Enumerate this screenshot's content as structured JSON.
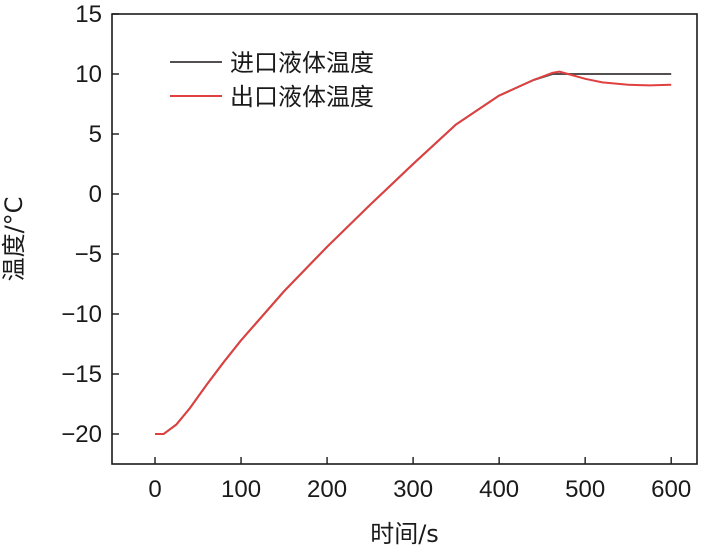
{
  "chart_data": {
    "type": "line",
    "xlabel": "时间/s",
    "ylabel": "温度/°C",
    "xlim": [
      -50,
      630
    ],
    "ylim": [
      -22.5,
      15
    ],
    "xticks": [
      0,
      100,
      200,
      300,
      400,
      500,
      600
    ],
    "yticks": [
      15,
      10,
      5,
      0,
      -5,
      -10,
      -15,
      -20
    ],
    "ytick_labels": [
      "15",
      "10",
      "5",
      "0",
      "−5",
      "−10",
      "−15",
      "−20"
    ],
    "grid": false,
    "legend_position": "top-left",
    "series": [
      {
        "name": "进口液体温度",
        "color": "#555050",
        "points": [
          [
            0,
            -20
          ],
          [
            10,
            -20
          ],
          [
            25,
            -19.2
          ],
          [
            40,
            -17.9
          ],
          [
            60,
            -15.9
          ],
          [
            80,
            -14.0
          ],
          [
            100,
            -12.2
          ],
          [
            150,
            -8.1
          ],
          [
            200,
            -4.4
          ],
          [
            250,
            -0.9
          ],
          [
            300,
            2.5
          ],
          [
            350,
            5.8
          ],
          [
            400,
            8.2
          ],
          [
            440,
            9.5
          ],
          [
            462,
            10.0
          ],
          [
            600,
            10.0
          ]
        ]
      },
      {
        "name": "出口液体温度",
        "color": "#e04040",
        "points": [
          [
            0,
            -20
          ],
          [
            10,
            -20
          ],
          [
            25,
            -19.2
          ],
          [
            40,
            -17.9
          ],
          [
            60,
            -15.9
          ],
          [
            80,
            -14.0
          ],
          [
            100,
            -12.2
          ],
          [
            150,
            -8.1
          ],
          [
            200,
            -4.4
          ],
          [
            250,
            -0.9
          ],
          [
            300,
            2.5
          ],
          [
            350,
            5.8
          ],
          [
            400,
            8.2
          ],
          [
            440,
            9.5
          ],
          [
            462,
            10.1
          ],
          [
            470,
            10.2
          ],
          [
            480,
            10.0
          ],
          [
            500,
            9.6
          ],
          [
            520,
            9.3
          ],
          [
            550,
            9.1
          ],
          [
            575,
            9.05
          ],
          [
            600,
            9.1
          ]
        ]
      }
    ]
  }
}
